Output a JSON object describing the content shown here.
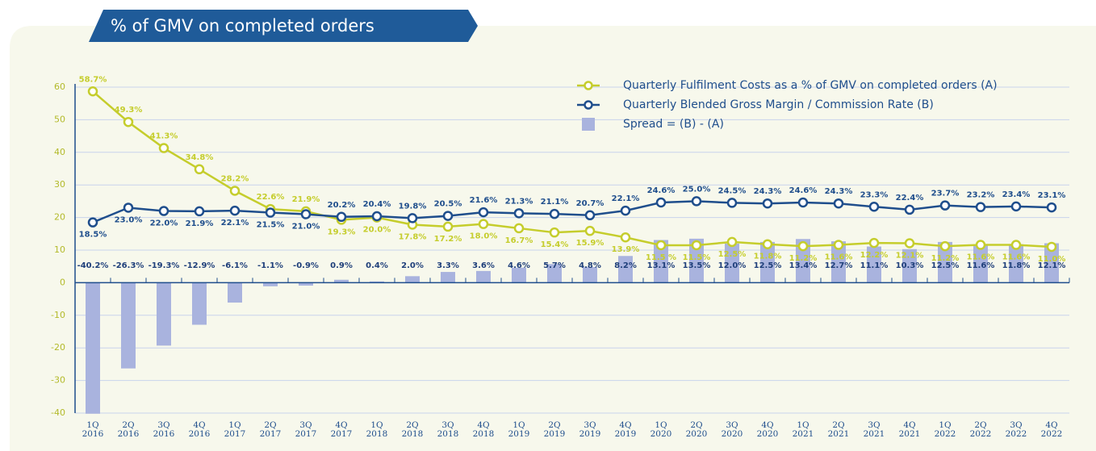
{
  "chart_data": {
    "type": "combo",
    "title": "% of GMV on completed orders",
    "categories": [
      [
        "1Q",
        "2016"
      ],
      [
        "2Q",
        "2016"
      ],
      [
        "3Q",
        "2016"
      ],
      [
        "4Q",
        "2016"
      ],
      [
        "1Q",
        "2017"
      ],
      [
        "2Q",
        "2017"
      ],
      [
        "3Q",
        "2017"
      ],
      [
        "4Q",
        "2017"
      ],
      [
        "1Q",
        "2018"
      ],
      [
        "2Q",
        "2018"
      ],
      [
        "3Q",
        "2018"
      ],
      [
        "4Q",
        "2018"
      ],
      [
        "1Q",
        "2019"
      ],
      [
        "2Q",
        "2019"
      ],
      [
        "3Q",
        "2019"
      ],
      [
        "4Q",
        "2019"
      ],
      [
        "1Q",
        "2020"
      ],
      [
        "2Q",
        "2020"
      ],
      [
        "3Q",
        "2020"
      ],
      [
        "4Q",
        "2020"
      ],
      [
        "1Q",
        "2021"
      ],
      [
        "2Q",
        "2021"
      ],
      [
        "3Q",
        "2021"
      ],
      [
        "4Q",
        "2021"
      ],
      [
        "1Q",
        "2022"
      ],
      [
        "2Q",
        "2022"
      ],
      [
        "3Q",
        "2022"
      ],
      [
        "4Q",
        "2022"
      ]
    ],
    "series": [
      {
        "name": "Quarterly Fulfilment Costs as a % of GMV on completed orders (A)",
        "kind": "line",
        "color": "#c5cd2c",
        "values": [
          58.7,
          49.3,
          41.3,
          34.8,
          28.2,
          22.6,
          21.9,
          19.3,
          20.0,
          17.8,
          17.2,
          18.0,
          16.7,
          15.4,
          15.9,
          13.9,
          11.5,
          11.5,
          12.5,
          11.8,
          11.2,
          11.6,
          12.2,
          12.1,
          11.2,
          11.6,
          11.6,
          11.0
        ],
        "value_labels": [
          "58.7%",
          "49.3%",
          "41.3%",
          "34.8%",
          "28.2%",
          "22.6%",
          "21.9%",
          "19.3%",
          "20.0%",
          "17.8%",
          "17.2%",
          "18.0%",
          "16.7%",
          "15.4%",
          "15.9%",
          "13.9%",
          "11.5 %",
          "11.5%",
          "12.5%",
          "11.8%",
          "11.2%",
          "11.6%",
          "12.2%",
          "12.1%",
          "11.2%",
          "11.6%",
          "11.6%",
          "11.0%"
        ]
      },
      {
        "name": "Quarterly Blended Gross Margin / Commission Rate (B)",
        "kind": "line",
        "color": "#1f4e8c",
        "values": [
          18.5,
          23.0,
          22.0,
          21.9,
          22.1,
          21.5,
          21.0,
          20.2,
          20.4,
          19.8,
          20.5,
          21.6,
          21.3,
          21.1,
          20.7,
          22.1,
          24.6,
          25.0,
          24.5,
          24.3,
          24.6,
          24.3,
          23.3,
          22.4,
          23.7,
          23.2,
          23.4,
          23.1
        ],
        "value_labels": [
          "18.5%",
          "23.0%",
          "22.0%",
          "21.9%",
          "22.1%",
          "21.5%",
          "21.0%",
          "20.2%",
          "20.4%",
          "19.8%",
          "20.5%",
          "21.6%",
          "21.3%",
          "21.1%",
          "20.7%",
          "22.1%",
          "24.6%",
          "25.0%",
          "24.5%",
          "24.3%",
          "24.6%",
          "24.3%",
          "23.3%",
          "22.4%",
          "23.7%",
          "23.2%",
          "23.4%",
          "23.1%"
        ]
      },
      {
        "name": "Spread = (B) - (A)",
        "kind": "bar",
        "color": "#a9b3de",
        "values": [
          -40.2,
          -26.3,
          -19.3,
          -12.9,
          -6.1,
          -1.1,
          -0.9,
          0.9,
          0.4,
          2.0,
          3.3,
          3.6,
          4.6,
          5.7,
          4.8,
          8.2,
          13.1,
          13.5,
          12.0,
          12.5,
          13.4,
          12.7,
          11.1,
          10.3,
          12.5,
          11.6,
          11.8,
          12.1
        ],
        "value_labels": [
          "-40.2%",
          "-26.3%",
          "-19.3%",
          "-12.9%",
          "-6.1%",
          "-1.1%",
          "-0.9%",
          "0.9%",
          "0.4%",
          "2.0%",
          "3.3%",
          "3.6%",
          "4.6%",
          "5.7%",
          "4.8%",
          "8.2%",
          "13.1%",
          "13.5%",
          "12.0%",
          "12.5%",
          "13.4%",
          "12.7%",
          "11.1%",
          "10.3%",
          "12.5%",
          "11.6%",
          "11.8%",
          "12.1%"
        ]
      }
    ],
    "ylim": [
      -40,
      60
    ],
    "yticks": [
      -40,
      -30,
      -20,
      -10,
      0,
      10,
      20,
      30,
      40,
      50,
      60
    ],
    "grid": true,
    "legend": "top-right"
  }
}
